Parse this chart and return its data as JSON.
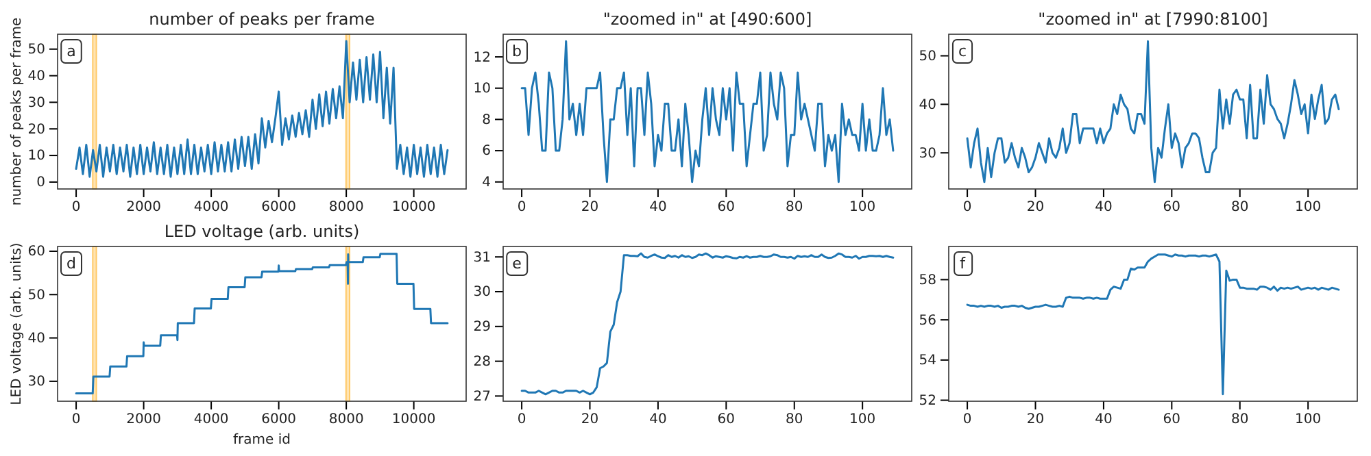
{
  "chart_data": [
    {
      "type": "line",
      "title": "number of peaks per frame",
      "ylabel": "number of peaks per frame",
      "annotations": [
        "a"
      ],
      "xlim": [
        -550,
        11550
      ],
      "ylim": [
        -2.6,
        55.6
      ],
      "xticks": [
        0,
        2000,
        4000,
        6000,
        8000,
        10000
      ],
      "yticks": [
        0,
        10,
        20,
        30,
        40,
        50
      ],
      "bands": [
        {
          "axis": "x",
          "from": 490,
          "to": 600,
          "color": "#ffa500"
        },
        {
          "axis": "x",
          "from": 7990,
          "to": 8100,
          "color": "#ffa500"
        }
      ],
      "x": [
        0,
        100,
        200,
        300,
        400,
        500,
        600,
        700,
        800,
        900,
        1000,
        1100,
        1200,
        1300,
        1400,
        1500,
        1600,
        1700,
        1800,
        1900,
        2000,
        2100,
        2200,
        2300,
        2400,
        2500,
        2600,
        2700,
        2800,
        2900,
        3000,
        3100,
        3200,
        3300,
        3400,
        3500,
        3600,
        3700,
        3800,
        3900,
        4000,
        4100,
        4200,
        4300,
        4400,
        4500,
        4600,
        4700,
        4800,
        4900,
        5000,
        5100,
        5200,
        5300,
        5400,
        5500,
        5600,
        5700,
        5800,
        5900,
        6000,
        6100,
        6200,
        6300,
        6400,
        6500,
        6600,
        6700,
        6800,
        6900,
        7000,
        7100,
        7200,
        7300,
        7400,
        7500,
        7600,
        7700,
        7800,
        7900,
        8000,
        8100,
        8200,
        8300,
        8400,
        8500,
        8600,
        8700,
        8800,
        8900,
        9000,
        9100,
        9200,
        9300,
        9400,
        9500,
        9600,
        9700,
        9800,
        9900,
        10000,
        10100,
        10200,
        10300,
        10400,
        10500,
        10600,
        10700,
        10800,
        10900,
        11000
      ],
      "series": [
        {
          "color": "#1f77b4",
          "values": [
            5,
            13,
            3,
            14,
            2,
            12,
            4,
            14,
            2,
            13,
            4,
            14,
            3,
            13,
            4,
            14,
            2,
            13,
            3,
            14,
            3,
            13,
            4,
            15,
            3,
            13,
            3,
            14,
            2,
            13,
            3,
            14,
            3,
            16,
            3,
            14,
            3,
            13,
            4,
            14,
            3,
            15,
            4,
            14,
            4,
            15,
            4,
            16,
            5,
            17,
            6,
            17,
            5,
            18,
            7,
            24,
            13,
            23,
            15,
            24,
            34,
            14,
            24,
            16,
            25,
            17,
            26,
            18,
            27,
            17,
            31,
            20,
            33,
            21,
            34,
            22,
            35,
            24,
            36,
            24,
            53,
            30,
            45,
            31,
            46,
            30,
            47,
            31,
            48,
            30,
            49,
            24,
            43,
            22,
            43,
            5,
            14,
            3,
            13,
            2,
            14,
            3,
            13,
            2,
            14,
            3,
            13,
            2,
            14,
            3,
            12
          ]
        }
      ]
    },
    {
      "type": "line",
      "title": "\"zoomed in\" at [490:600]",
      "annotations": [
        "b"
      ],
      "x": [
        0,
        1,
        2,
        3,
        4,
        5,
        6,
        7,
        8,
        9,
        10,
        11,
        12,
        13,
        14,
        15,
        16,
        17,
        18,
        19,
        20,
        21,
        22,
        23,
        24,
        25,
        26,
        27,
        28,
        29,
        30,
        31,
        32,
        33,
        34,
        35,
        36,
        37,
        38,
        39,
        40,
        41,
        42,
        43,
        44,
        45,
        46,
        47,
        48,
        49,
        50,
        51,
        52,
        53,
        54,
        55,
        56,
        57,
        58,
        59,
        60,
        61,
        62,
        63,
        64,
        65,
        66,
        67,
        68,
        69,
        70,
        71,
        72,
        73,
        74,
        75,
        76,
        77,
        78,
        79,
        80,
        81,
        82,
        83,
        84,
        85,
        86,
        87,
        88,
        89,
        90,
        91,
        92,
        93,
        94,
        95,
        96,
        97,
        98,
        99,
        100,
        101,
        102,
        103,
        104,
        105,
        106,
        107,
        108,
        109
      ],
      "xlim": [
        -5.45,
        114.45
      ],
      "ylim": [
        3.55,
        13.45
      ],
      "xticks": [
        0,
        20,
        40,
        60,
        80,
        100
      ],
      "yticks": [
        4,
        6,
        8,
        10,
        12
      ],
      "series": [
        {
          "color": "#1f77b4",
          "values": [
            10,
            10,
            7,
            10,
            11,
            9,
            6,
            6,
            11,
            10,
            6,
            6,
            8,
            13,
            8,
            9,
            7,
            9,
            7,
            10,
            10,
            10,
            10,
            11,
            7,
            4,
            8,
            8,
            10,
            10,
            11,
            7,
            10,
            5,
            10,
            10,
            7,
            11,
            9,
            5,
            7,
            6,
            9,
            9,
            6,
            6,
            8,
            5,
            9,
            7,
            4,
            6,
            5,
            8,
            10,
            7,
            10,
            8,
            7,
            10,
            8,
            10,
            6,
            11,
            9,
            9,
            5,
            7,
            9,
            9,
            11,
            6,
            7,
            11,
            9,
            8,
            11,
            10,
            5,
            7,
            7,
            11,
            8,
            9,
            8,
            7,
            6,
            9,
            9,
            5,
            7,
            6,
            7,
            4,
            9,
            7,
            8,
            7,
            7,
            6,
            9,
            6,
            8,
            6,
            6,
            7,
            10,
            7,
            8,
            6
          ]
        }
      ]
    },
    {
      "type": "line",
      "title": "\"zoomed in\" at [7990:8100]",
      "annotations": [
        "c"
      ],
      "x": [
        0,
        1,
        2,
        3,
        4,
        5,
        6,
        7,
        8,
        9,
        10,
        11,
        12,
        13,
        14,
        15,
        16,
        17,
        18,
        19,
        20,
        21,
        22,
        23,
        24,
        25,
        26,
        27,
        28,
        29,
        30,
        31,
        32,
        33,
        34,
        35,
        36,
        37,
        38,
        39,
        40,
        41,
        42,
        43,
        44,
        45,
        46,
        47,
        48,
        49,
        50,
        51,
        52,
        53,
        54,
        55,
        56,
        57,
        58,
        59,
        60,
        61,
        62,
        63,
        64,
        65,
        66,
        67,
        68,
        69,
        70,
        71,
        72,
        73,
        74,
        75,
        76,
        77,
        78,
        79,
        80,
        81,
        82,
        83,
        84,
        85,
        86,
        87,
        88,
        89,
        90,
        91,
        92,
        93,
        94,
        95,
        96,
        97,
        98,
        99,
        100,
        101,
        102,
        103,
        104,
        105,
        106,
        107,
        108,
        109
      ],
      "xlim": [
        -5.45,
        114.45
      ],
      "ylim": [
        22.55,
        54.45
      ],
      "xticks": [
        0,
        20,
        40,
        60,
        80,
        100
      ],
      "yticks": [
        30,
        40,
        50
      ],
      "series": [
        {
          "color": "#1f77b4",
          "values": [
            33,
            27,
            32,
            35,
            28,
            24,
            31,
            25,
            30,
            33,
            33,
            28,
            29,
            32,
            29,
            27,
            31,
            29,
            26,
            27,
            29,
            32,
            30,
            28,
            33,
            30,
            29,
            31,
            35,
            30,
            32,
            38,
            38,
            32,
            35,
            35,
            35,
            35,
            32,
            35,
            32,
            34,
            35,
            40,
            38,
            42,
            40,
            39,
            35,
            34,
            38,
            38,
            36,
            53,
            31,
            24,
            31,
            29,
            35,
            40,
            31,
            34,
            32,
            27,
            31,
            32,
            34,
            34,
            33,
            29,
            26,
            26,
            30,
            31,
            43,
            35,
            41,
            36,
            42,
            43,
            41,
            41,
            33,
            44,
            33,
            33,
            43,
            36,
            46,
            40,
            39,
            37,
            36,
            33,
            36,
            40,
            45,
            42,
            38,
            40,
            34,
            42,
            37,
            41,
            44,
            36,
            37,
            41,
            42,
            39
          ]
        }
      ]
    },
    {
      "type": "line",
      "title": "LED voltage (arb. units)",
      "xlabel": "frame id",
      "ylabel": "LED voltage (arb. units)",
      "annotations": [
        "d"
      ],
      "xlim": [
        -550,
        11550
      ],
      "ylim": [
        25.4,
        61.1
      ],
      "xticks": [
        0,
        2000,
        4000,
        6000,
        8000,
        10000
      ],
      "yticks": [
        30,
        40,
        50,
        60
      ],
      "bands": [
        {
          "axis": "x",
          "from": 490,
          "to": 600,
          "color": "#ffa500"
        },
        {
          "axis": "x",
          "from": 7990,
          "to": 8100,
          "color": "#ffa500"
        }
      ],
      "x": [
        0,
        490,
        510,
        990,
        1010,
        1490,
        1510,
        1990,
        2000,
        2010,
        2490,
        2510,
        2990,
        3000,
        3010,
        3490,
        3510,
        3990,
        4010,
        4490,
        4510,
        4990,
        5010,
        5490,
        5510,
        5990,
        6000,
        6010,
        6490,
        6510,
        6990,
        7010,
        7490,
        7510,
        7990,
        8010,
        8040,
        8050,
        8055,
        8060,
        8490,
        8510,
        8990,
        9010,
        9490,
        9510,
        9990,
        10010,
        10490,
        10510,
        11000
      ],
      "series": [
        {
          "color": "#1f77b4",
          "values": [
            27.2,
            27.2,
            31.1,
            31.1,
            33.4,
            33.4,
            35.8,
            35.8,
            39,
            38.2,
            38.2,
            40.6,
            40.6,
            39.5,
            43.4,
            43.4,
            46.8,
            46.8,
            49,
            49,
            51.7,
            51.7,
            54,
            54,
            55.3,
            55.3,
            56.7,
            55.4,
            55.4,
            55.9,
            55.9,
            56.3,
            56.3,
            56.8,
            56.8,
            57.5,
            57.5,
            52.5,
            59.3,
            57.5,
            57.5,
            58.6,
            58.6,
            59.4,
            59.4,
            52.5,
            52.5,
            46.7,
            46.7,
            43.4,
            43.4
          ]
        }
      ]
    },
    {
      "type": "line",
      "annotations": [
        "e"
      ],
      "x": [
        0,
        1,
        2,
        3,
        4,
        5,
        6,
        7,
        8,
        9,
        10,
        11,
        12,
        13,
        14,
        15,
        16,
        17,
        18,
        19,
        20,
        21,
        22,
        23,
        24,
        25,
        26,
        27,
        28,
        29,
        30,
        31,
        32,
        33,
        34,
        35,
        36,
        37,
        38,
        39,
        40,
        41,
        42,
        43,
        44,
        45,
        46,
        47,
        48,
        49,
        50,
        51,
        52,
        53,
        54,
        55,
        56,
        57,
        58,
        59,
        60,
        61,
        62,
        63,
        64,
        65,
        66,
        67,
        68,
        69,
        70,
        71,
        72,
        73,
        74,
        75,
        76,
        77,
        78,
        79,
        80,
        81,
        82,
        83,
        84,
        85,
        86,
        87,
        88,
        89,
        90,
        91,
        92,
        93,
        94,
        95,
        96,
        97,
        98,
        99,
        100,
        101,
        102,
        103,
        104,
        105,
        106,
        107,
        108,
        109
      ],
      "xlim": [
        -5.45,
        114.45
      ],
      "ylim": [
        26.85,
        31.3
      ],
      "xticks": [
        0,
        20,
        40,
        60,
        80,
        100
      ],
      "yticks": [
        27,
        28,
        29,
        30,
        31
      ],
      "series": [
        {
          "color": "#1f77b4",
          "values": [
            27.15,
            27.15,
            27.1,
            27.1,
            27.1,
            27.15,
            27.1,
            27.05,
            27.1,
            27.15,
            27.15,
            27.1,
            27.1,
            27.15,
            27.15,
            27.15,
            27.15,
            27.1,
            27.15,
            27.1,
            27.05,
            27.1,
            27.25,
            27.8,
            27.85,
            27.95,
            28.85,
            29.05,
            29.7,
            30.0,
            31.05,
            31.05,
            31.03,
            31.03,
            31.02,
            31.1,
            31.0,
            30.98,
            31.03,
            31.07,
            31.02,
            30.98,
            30.97,
            31.05,
            31.0,
            31.03,
            30.98,
            31.05,
            31.0,
            31.02,
            30.97,
            31.0,
            31.07,
            31.05,
            31.1,
            31.05,
            30.98,
            31.02,
            31.0,
            30.98,
            31.02,
            31.0,
            30.97,
            30.96,
            31.0,
            30.98,
            31.02,
            30.98,
            31.0,
            31.0,
            31.03,
            31.0,
            31.0,
            31.02,
            31.07,
            31.05,
            31.0,
            31.0,
            30.98,
            31.0,
            30.95,
            31.03,
            31.0,
            31.02,
            31.0,
            31.05,
            31.0,
            31.0,
            31.07,
            31.0,
            30.97,
            30.98,
            31.03,
            31.1,
            31.07,
            31.0,
            31.0,
            30.98,
            31.03,
            30.95,
            31.0,
            31.0,
            31.03,
            31.03,
            31.02,
            31.03,
            31.0,
            31.03,
            31.0,
            30.98
          ]
        }
      ]
    },
    {
      "type": "line",
      "annotations": [
        "f"
      ],
      "x": [
        0,
        1,
        2,
        3,
        4,
        5,
        6,
        7,
        8,
        9,
        10,
        11,
        12,
        13,
        14,
        15,
        16,
        17,
        18,
        19,
        20,
        21,
        22,
        23,
        24,
        25,
        26,
        27,
        28,
        29,
        30,
        31,
        32,
        33,
        34,
        35,
        36,
        37,
        38,
        39,
        40,
        41,
        42,
        43,
        44,
        45,
        46,
        47,
        48,
        49,
        50,
        51,
        52,
        53,
        54,
        55,
        56,
        57,
        58,
        59,
        60,
        61,
        62,
        63,
        64,
        65,
        66,
        67,
        68,
        69,
        70,
        71,
        72,
        73,
        74,
        75,
        76,
        77,
        78,
        79,
        80,
        81,
        82,
        83,
        84,
        85,
        86,
        87,
        88,
        89,
        90,
        91,
        92,
        93,
        94,
        95,
        96,
        97,
        98,
        99,
        100,
        101,
        102,
        103,
        104,
        105,
        106,
        107,
        108,
        109
      ],
      "xlim": [
        -5.45,
        114.45
      ],
      "ylim": [
        51.95,
        59.65
      ],
      "xticks": [
        0,
        20,
        40,
        60,
        80,
        100
      ],
      "yticks": [
        52,
        54,
        56,
        58
      ],
      "series": [
        {
          "color": "#1f77b4",
          "values": [
            56.75,
            56.7,
            56.7,
            56.65,
            56.7,
            56.65,
            56.7,
            56.7,
            56.65,
            56.7,
            56.6,
            56.65,
            56.65,
            56.7,
            56.7,
            56.65,
            56.7,
            56.6,
            56.55,
            56.6,
            56.65,
            56.65,
            56.7,
            56.75,
            56.7,
            56.65,
            56.65,
            56.7,
            56.65,
            57.1,
            57.15,
            57.1,
            57.1,
            57.1,
            57.05,
            57.1,
            57.1,
            57.05,
            57.1,
            57.05,
            57.05,
            57.05,
            57.5,
            57.65,
            57.6,
            57.55,
            58.0,
            58.0,
            58.55,
            58.5,
            58.6,
            58.6,
            58.6,
            58.9,
            59.05,
            59.15,
            59.25,
            59.25,
            59.25,
            59.2,
            59.15,
            59.25,
            59.2,
            59.2,
            59.15,
            59.2,
            59.2,
            59.2,
            59.15,
            59.2,
            59.2,
            59.15,
            59.2,
            59.25,
            58.9,
            52.3,
            58.45,
            57.95,
            58.0,
            58.0,
            57.6,
            57.6,
            57.55,
            57.55,
            57.55,
            57.5,
            57.65,
            57.65,
            57.6,
            57.5,
            57.65,
            57.45,
            57.6,
            57.55,
            57.6,
            57.55,
            57.6,
            57.65,
            57.5,
            57.55,
            57.6,
            57.55,
            57.6,
            57.5,
            57.6,
            57.55,
            57.5,
            57.6,
            57.55,
            57.5
          ]
        }
      ]
    }
  ]
}
